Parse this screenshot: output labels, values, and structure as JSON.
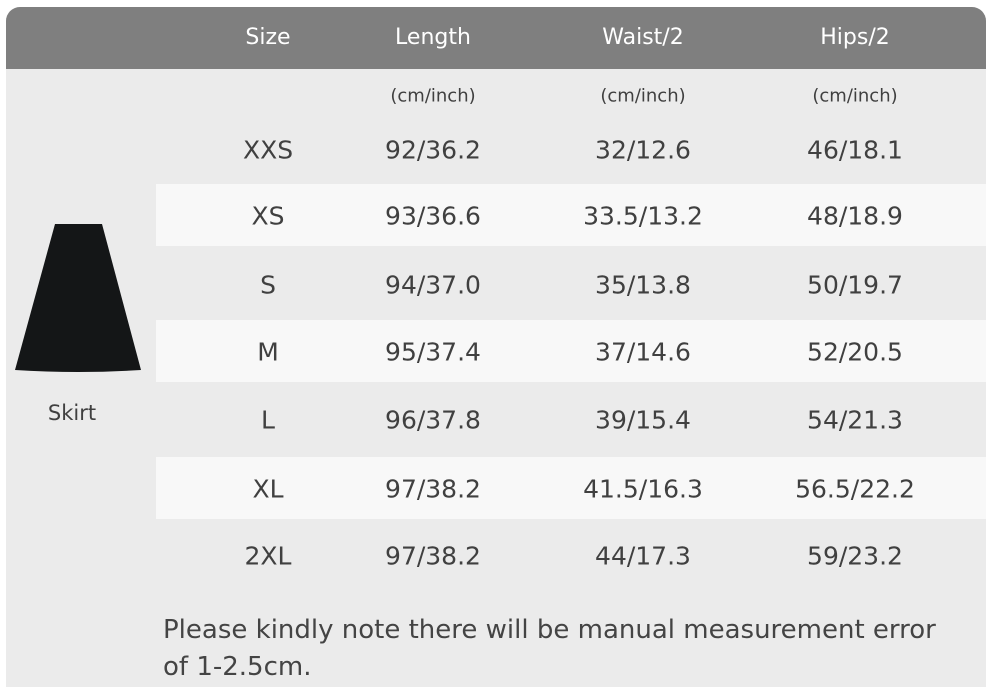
{
  "table": {
    "headers": [
      "Size",
      "Length",
      "Waist/2",
      "Hips/2"
    ],
    "units": [
      "",
      "(cm/inch)",
      "(cm/inch)",
      "(cm/inch)"
    ],
    "rows": [
      [
        "XXS",
        "92/36.2",
        "32/12.6",
        "46/18.1"
      ],
      [
        "XS",
        "93/36.6",
        "33.5/13.2",
        "48/18.9"
      ],
      [
        "S",
        "94/37.0",
        "35/13.8",
        "50/19.7"
      ],
      [
        "M",
        "95/37.4",
        "37/14.6",
        "52/20.5"
      ],
      [
        "L",
        "96/37.8",
        "39/15.4",
        "54/21.3"
      ],
      [
        "XL",
        "97/38.2",
        "41.5/16.3",
        "56.5/22.2"
      ],
      [
        "2XL",
        "97/38.2",
        "44/17.3",
        "59/23.2"
      ]
    ]
  },
  "product": {
    "label": "Skirt",
    "icon": "skirt-icon"
  },
  "note": "Please kindly note there will be manual measurement error of 1-2.5cm.",
  "colors": {
    "header": "#7f7f7f",
    "body": "#ebebeb",
    "stripe": "#f8f8f8"
  }
}
